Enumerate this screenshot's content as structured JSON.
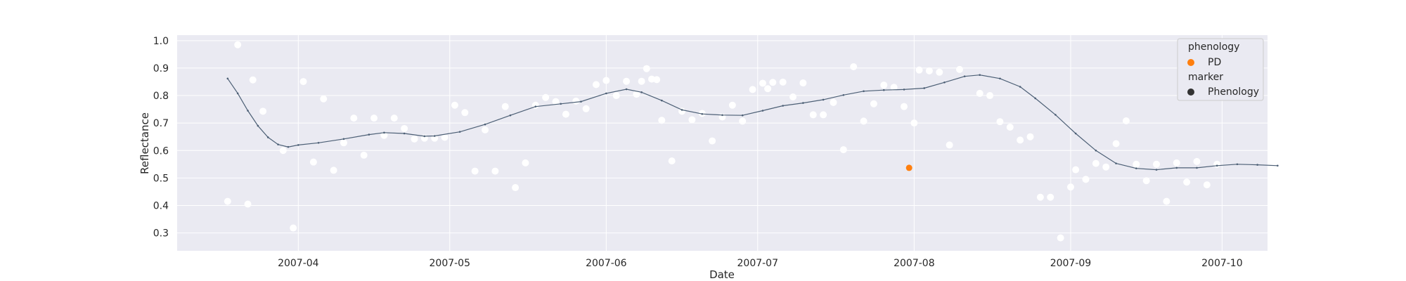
{
  "chart_data": {
    "type": "scatter",
    "title": "",
    "xlabel": "Date",
    "ylabel": "Reflectance",
    "x_axis": {
      "min": "2007-03-08",
      "max": "2007-10-10",
      "ticks": [
        "2007-04-01",
        "2007-05-01",
        "2007-06-01",
        "2007-07-01",
        "2007-08-01",
        "2007-09-01",
        "2007-10-01"
      ],
      "tick_labels": [
        "2007-04",
        "2007-05",
        "2007-06",
        "2007-07",
        "2007-08",
        "2007-09",
        "2007-10"
      ]
    },
    "y_axis": {
      "min": 0.235,
      "max": 1.02,
      "ticks": [
        0.3,
        0.4,
        0.5,
        0.6,
        0.7,
        0.8,
        0.9,
        1.0
      ],
      "tick_labels": [
        "0.3",
        "0.4",
        "0.5",
        "0.6",
        "0.7",
        "0.8",
        "0.9",
        "1.0"
      ]
    },
    "grid": true,
    "legend_position": "upper right",
    "legend": {
      "title1": "phenology",
      "item1": "PD",
      "title2": "marker",
      "item2": "Phenology"
    },
    "colors": {
      "background": "#eaeaf2",
      "grid": "#ffffff",
      "observations": "#ffffff",
      "fit_line": "#4c5f75",
      "pd_marker": "#ff7f0e",
      "legend_marker": "#333333"
    },
    "observations": [
      [
        "2007-03-18",
        0.415
      ],
      [
        "2007-03-20",
        0.985
      ],
      [
        "2007-03-22",
        0.405
      ],
      [
        "2007-03-23",
        0.857
      ],
      [
        "2007-03-25",
        0.743
      ],
      [
        "2007-03-29",
        0.6
      ],
      [
        "2007-03-31",
        0.318
      ],
      [
        "2007-04-02",
        0.851
      ],
      [
        "2007-04-04",
        0.558
      ],
      [
        "2007-04-06",
        0.788
      ],
      [
        "2007-04-08",
        0.528
      ],
      [
        "2007-04-10",
        0.628
      ],
      [
        "2007-04-12",
        0.718
      ],
      [
        "2007-04-14",
        0.583
      ],
      [
        "2007-04-16",
        0.718
      ],
      [
        "2007-04-18",
        0.655
      ],
      [
        "2007-04-20",
        0.718
      ],
      [
        "2007-04-22",
        0.68
      ],
      [
        "2007-04-24",
        0.642
      ],
      [
        "2007-04-26",
        0.645
      ],
      [
        "2007-04-28",
        0.645
      ],
      [
        "2007-04-30",
        0.648
      ],
      [
        "2007-05-02",
        0.765
      ],
      [
        "2007-05-04",
        0.738
      ],
      [
        "2007-05-06",
        0.525
      ],
      [
        "2007-05-08",
        0.675
      ],
      [
        "2007-05-10",
        0.525
      ],
      [
        "2007-05-12",
        0.76
      ],
      [
        "2007-05-14",
        0.465
      ],
      [
        "2007-05-16",
        0.555
      ],
      [
        "2007-05-18",
        0.765
      ],
      [
        "2007-05-20",
        0.793
      ],
      [
        "2007-05-22",
        0.778
      ],
      [
        "2007-05-24",
        0.732
      ],
      [
        "2007-05-26",
        0.78
      ],
      [
        "2007-05-28",
        0.752
      ],
      [
        "2007-05-30",
        0.84
      ],
      [
        "2007-06-01",
        0.855
      ],
      [
        "2007-06-03",
        0.8
      ],
      [
        "2007-06-05",
        0.852
      ],
      [
        "2007-06-07",
        0.805
      ],
      [
        "2007-06-08",
        0.852
      ],
      [
        "2007-06-09",
        0.898
      ],
      [
        "2007-06-10",
        0.86
      ],
      [
        "2007-06-11",
        0.858
      ],
      [
        "2007-06-12",
        0.71
      ],
      [
        "2007-06-14",
        0.562
      ],
      [
        "2007-06-16",
        0.743
      ],
      [
        "2007-06-18",
        0.712
      ],
      [
        "2007-06-20",
        0.735
      ],
      [
        "2007-06-22",
        0.635
      ],
      [
        "2007-06-24",
        0.722
      ],
      [
        "2007-06-26",
        0.765
      ],
      [
        "2007-06-28",
        0.707
      ],
      [
        "2007-06-30",
        0.822
      ],
      [
        "2007-07-02",
        0.845
      ],
      [
        "2007-07-03",
        0.825
      ],
      [
        "2007-07-04",
        0.848
      ],
      [
        "2007-07-06",
        0.849
      ],
      [
        "2007-07-08",
        0.795
      ],
      [
        "2007-07-10",
        0.846
      ],
      [
        "2007-07-12",
        0.73
      ],
      [
        "2007-07-14",
        0.73
      ],
      [
        "2007-07-16",
        0.775
      ],
      [
        "2007-07-18",
        0.603
      ],
      [
        "2007-07-20",
        0.905
      ],
      [
        "2007-07-22",
        0.707
      ],
      [
        "2007-07-24",
        0.77
      ],
      [
        "2007-07-26",
        0.838
      ],
      [
        "2007-07-28",
        0.83
      ],
      [
        "2007-07-30",
        0.76
      ],
      [
        "2007-08-01",
        0.7
      ],
      [
        "2007-08-02",
        0.893
      ],
      [
        "2007-08-04",
        0.89
      ],
      [
        "2007-08-06",
        0.885
      ],
      [
        "2007-08-08",
        0.62
      ],
      [
        "2007-08-10",
        0.895
      ],
      [
        "2007-08-14",
        0.808
      ],
      [
        "2007-08-16",
        0.8
      ],
      [
        "2007-08-18",
        0.705
      ],
      [
        "2007-08-20",
        0.685
      ],
      [
        "2007-08-22",
        0.638
      ],
      [
        "2007-08-24",
        0.65
      ],
      [
        "2007-08-26",
        0.43
      ],
      [
        "2007-08-28",
        0.43
      ],
      [
        "2007-08-30",
        0.282
      ],
      [
        "2007-09-01",
        0.467
      ],
      [
        "2007-09-02",
        0.53
      ],
      [
        "2007-09-04",
        0.495
      ],
      [
        "2007-09-06",
        0.553
      ],
      [
        "2007-09-08",
        0.54
      ],
      [
        "2007-09-10",
        0.625
      ],
      [
        "2007-09-12",
        0.708
      ],
      [
        "2007-09-14",
        0.55
      ],
      [
        "2007-09-16",
        0.49
      ],
      [
        "2007-09-18",
        0.55
      ],
      [
        "2007-09-20",
        0.415
      ],
      [
        "2007-09-22",
        0.555
      ],
      [
        "2007-09-24",
        0.485
      ],
      [
        "2007-09-26",
        0.56
      ],
      [
        "2007-09-28",
        0.475
      ],
      [
        "2007-09-30",
        0.55
      ]
    ],
    "fit_line": [
      [
        "2007-03-18",
        0.862
      ],
      [
        "2007-03-20",
        0.808
      ],
      [
        "2007-03-22",
        0.745
      ],
      [
        "2007-03-24",
        0.69
      ],
      [
        "2007-03-26",
        0.648
      ],
      [
        "2007-03-28",
        0.622
      ],
      [
        "2007-03-30",
        0.613
      ],
      [
        "2007-04-01",
        0.62
      ],
      [
        "2007-04-05",
        0.628
      ],
      [
        "2007-04-10",
        0.642
      ],
      [
        "2007-04-15",
        0.658
      ],
      [
        "2007-04-18",
        0.665
      ],
      [
        "2007-04-22",
        0.662
      ],
      [
        "2007-04-26",
        0.652
      ],
      [
        "2007-04-28",
        0.653
      ],
      [
        "2007-05-03",
        0.668
      ],
      [
        "2007-05-08",
        0.695
      ],
      [
        "2007-05-13",
        0.728
      ],
      [
        "2007-05-18",
        0.76
      ],
      [
        "2007-05-23",
        0.77
      ],
      [
        "2007-05-27",
        0.778
      ],
      [
        "2007-06-01",
        0.808
      ],
      [
        "2007-06-05",
        0.823
      ],
      [
        "2007-06-08",
        0.812
      ],
      [
        "2007-06-12",
        0.782
      ],
      [
        "2007-06-16",
        0.748
      ],
      [
        "2007-06-20",
        0.733
      ],
      [
        "2007-06-24",
        0.729
      ],
      [
        "2007-06-28",
        0.728
      ],
      [
        "2007-07-02",
        0.745
      ],
      [
        "2007-07-06",
        0.763
      ],
      [
        "2007-07-10",
        0.773
      ],
      [
        "2007-07-14",
        0.785
      ],
      [
        "2007-07-18",
        0.802
      ],
      [
        "2007-07-22",
        0.816
      ],
      [
        "2007-07-26",
        0.82
      ],
      [
        "2007-07-30",
        0.822
      ],
      [
        "2007-08-03",
        0.827
      ],
      [
        "2007-08-07",
        0.848
      ],
      [
        "2007-08-11",
        0.87
      ],
      [
        "2007-08-14",
        0.875
      ],
      [
        "2007-08-18",
        0.862
      ],
      [
        "2007-08-22",
        0.832
      ],
      [
        "2007-08-25",
        0.79
      ],
      [
        "2007-08-29",
        0.73
      ],
      [
        "2007-09-02",
        0.662
      ],
      [
        "2007-09-06",
        0.6
      ],
      [
        "2007-09-10",
        0.553
      ],
      [
        "2007-09-14",
        0.535
      ],
      [
        "2007-09-18",
        0.53
      ],
      [
        "2007-09-22",
        0.537
      ],
      [
        "2007-09-26",
        0.537
      ],
      [
        "2007-09-30",
        0.545
      ],
      [
        "2007-10-04",
        0.55
      ],
      [
        "2007-10-08",
        0.548
      ],
      [
        "2007-10-12",
        0.545
      ]
    ],
    "pd_point": [
      "2007-07-31",
      0.537
    ]
  }
}
